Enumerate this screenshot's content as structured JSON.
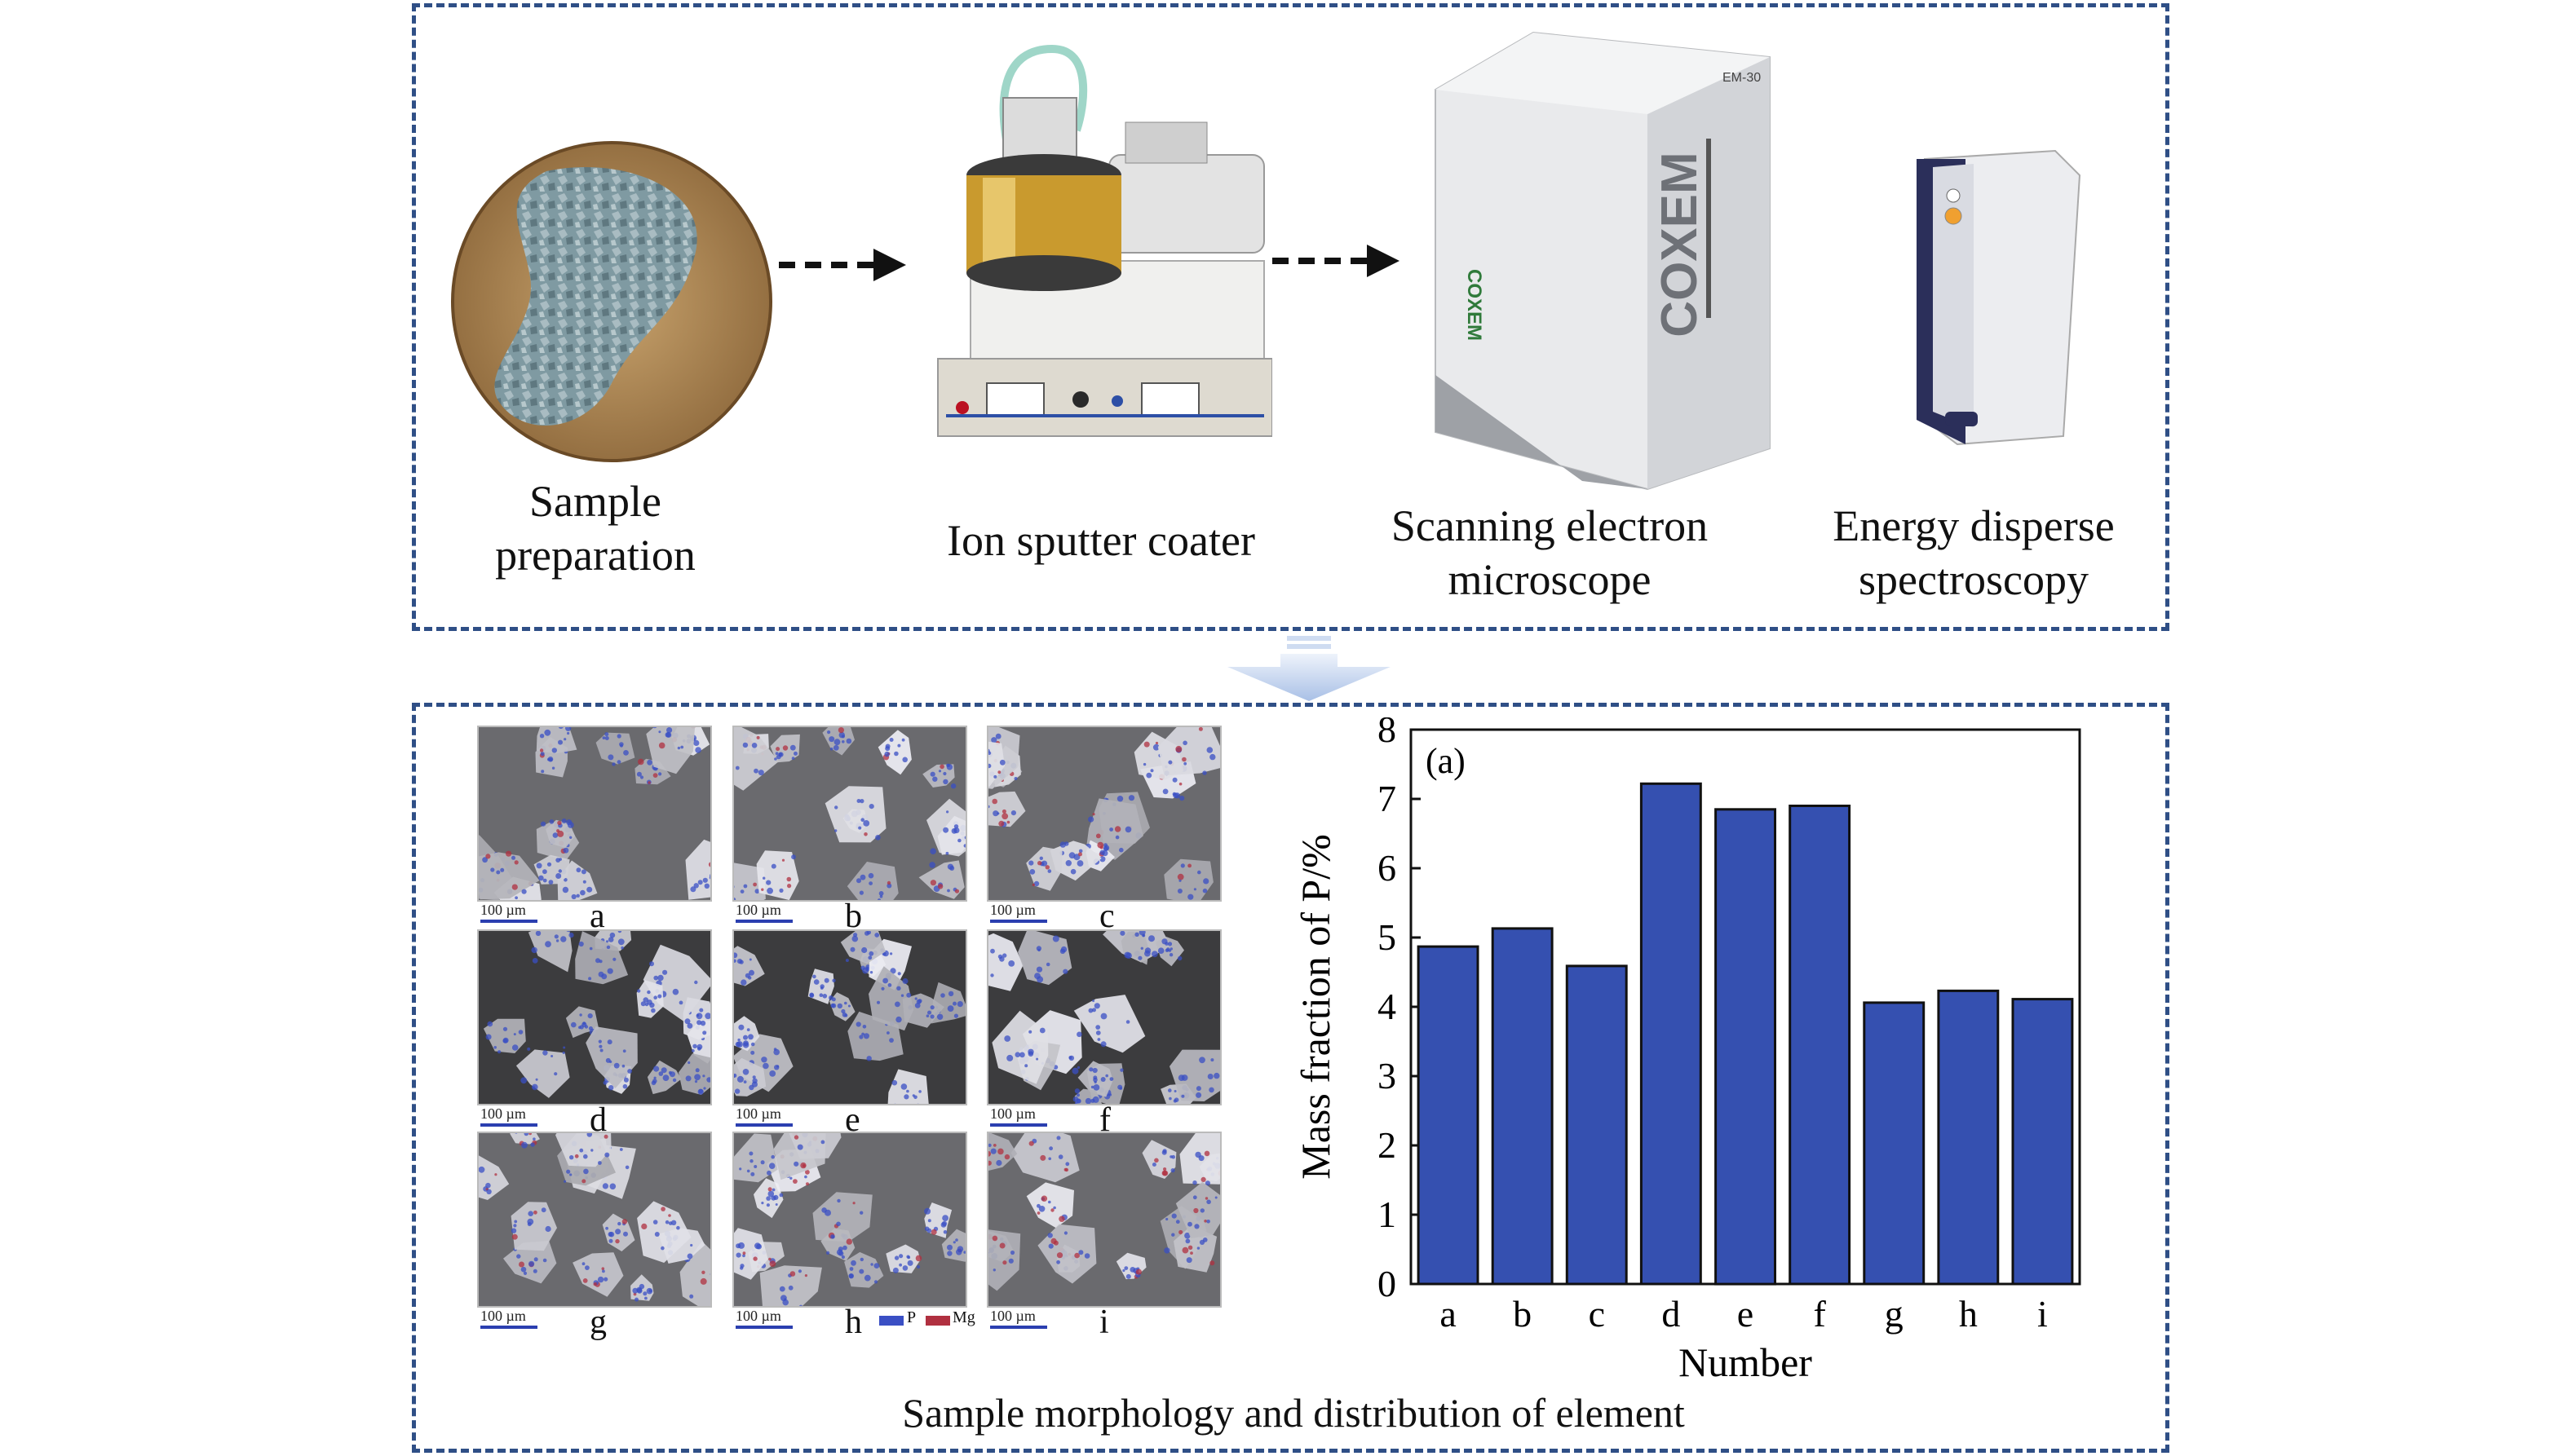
{
  "top": {
    "steps": [
      {
        "label": "Sample\npreparation"
      },
      {
        "label": "Ion sputter coater"
      },
      {
        "label": "Scanning electron\nmicroscope"
      },
      {
        "label": "Energy disperse\nspectroscopy"
      }
    ],
    "sem_brand": "COXEM",
    "sem_model": "EM-30"
  },
  "bottom": {
    "caption": "Sample morphology and distribution of element",
    "tiles": [
      {
        "label": "a",
        "scale": "100 µm"
      },
      {
        "label": "b",
        "scale": "100 µm"
      },
      {
        "label": "c",
        "scale": "100 µm"
      },
      {
        "label": "d",
        "scale": "100 µm"
      },
      {
        "label": "e",
        "scale": "100 µm"
      },
      {
        "label": "f",
        "scale": "100 µm"
      },
      {
        "label": "g",
        "scale": "100 µm"
      },
      {
        "label": "h",
        "scale": "100 µm"
      },
      {
        "label": "i",
        "scale": "100 µm"
      }
    ],
    "legend": [
      {
        "name": "P",
        "color": "#3a4fc4"
      },
      {
        "name": "Mg",
        "color": "#b03040"
      }
    ]
  },
  "colors": {
    "frame": "#2f4f86",
    "bar": "#3550b0",
    "arrow": "#111111",
    "down_arrow": "#c7d6ee"
  },
  "chart_data": {
    "type": "bar",
    "panel_label": "(a)",
    "categories": [
      "a",
      "b",
      "c",
      "d",
      "e",
      "f",
      "g",
      "h",
      "i"
    ],
    "values": [
      4.87,
      5.13,
      4.59,
      7.22,
      6.85,
      6.9,
      4.06,
      4.23,
      4.11
    ],
    "xlabel": "Number",
    "ylabel": "Mass fraction of P/%",
    "ylim": [
      0,
      8
    ],
    "yticks": [
      0,
      1,
      2,
      3,
      4,
      5,
      6,
      7,
      8
    ],
    "grid": false
  }
}
